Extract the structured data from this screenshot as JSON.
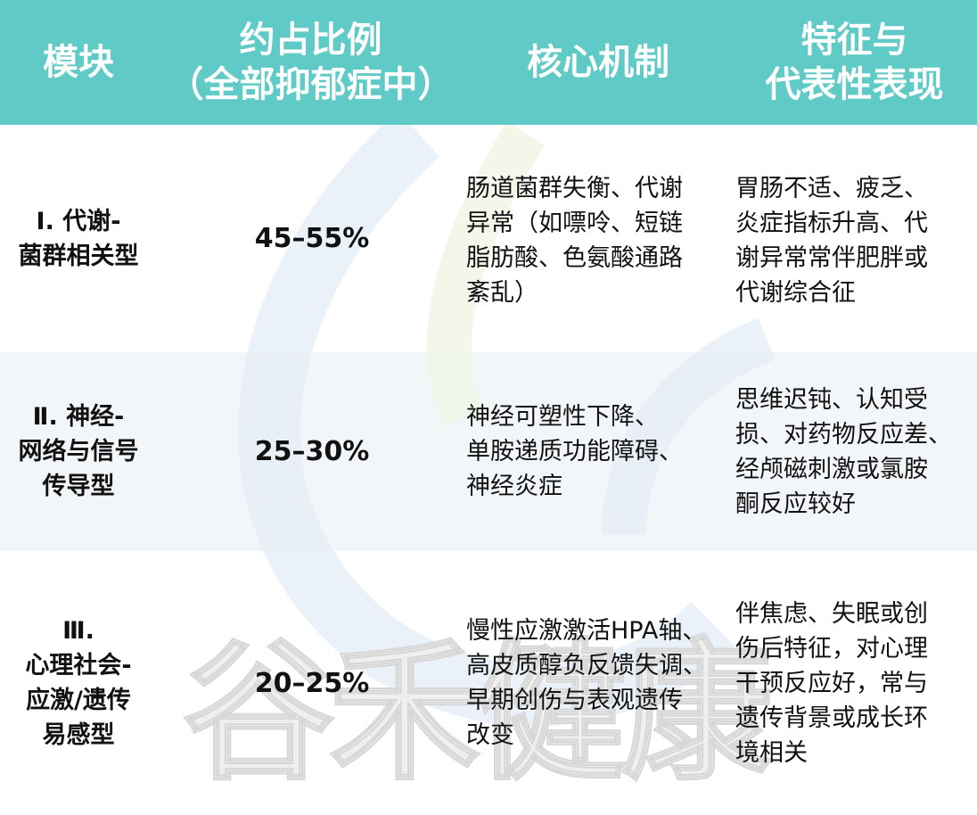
{
  "colors": {
    "header_bg": "#5fcac6",
    "header_text": "#ffffff",
    "row_alt_bg": "#f3f6f9"
  },
  "header": {
    "col1": "模块",
    "col2": "约占比例\n（全部抑郁症中）",
    "col3": "核心机制",
    "col4": "特征与\n代表性表现"
  },
  "rows": [
    {
      "module": "Ⅰ. 代谢-\n菌群相关型",
      "ratio": "45–55%",
      "mechanism": "肠道菌群失衡、代谢\n异常（如嘌呤、短链\n脂肪酸、色氨酸通路\n紊乱）",
      "features": "胃肠不适、疲乏、\n炎症指标升高、代\n谢异常常伴肥胖或\n代谢综合征"
    },
    {
      "module": "Ⅱ. 神经-\n网络与信号\n传导型",
      "ratio": "25–30%",
      "mechanism": "神经可塑性下降、\n单胺递质功能障碍、\n神经炎症",
      "features": "思维迟钝、认知受\n损、对药物反应差、\n经颅磁刺激或氯胺\n酮反应较好"
    },
    {
      "module": "Ⅲ.\n心理社会-\n应激/遗传\n易感型",
      "ratio": "20–25%",
      "mechanism": "慢性应激激活HPA轴、\n高皮质醇负反馈失调、\n早期创伤与表观遗传\n改变",
      "features": "伴焦虑、失眠或创\n伤后特征，对心理\n干预反应好，常与\n遗传背景或成长环\n境相关"
    }
  ],
  "watermark": "谷禾健康"
}
